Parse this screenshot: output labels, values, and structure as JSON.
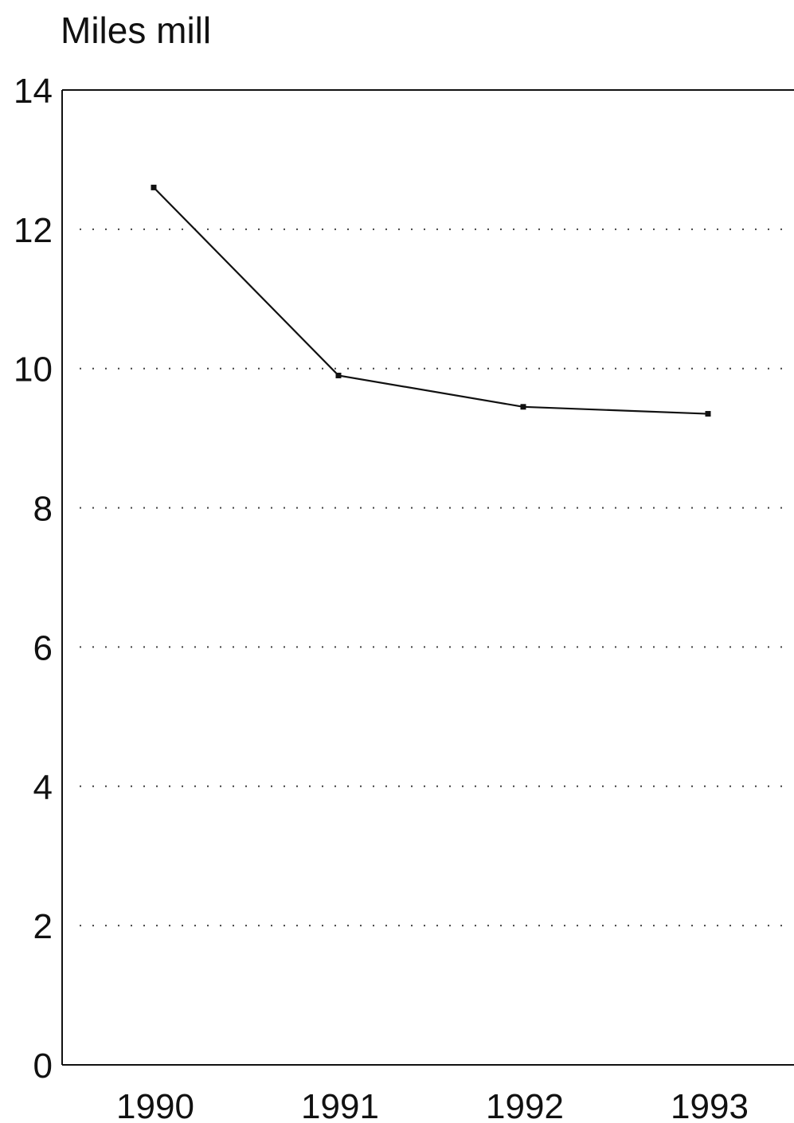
{
  "chart_data": {
    "type": "line",
    "title": "",
    "xlabel": "",
    "ylabel": "Miles mill",
    "categories": [
      "1990",
      "1991",
      "1992",
      "1993"
    ],
    "series": [
      {
        "values": [
          12.6,
          9.9,
          9.45,
          9.35
        ]
      }
    ],
    "ylim": [
      0,
      14
    ],
    "yticks": [
      0,
      2,
      4,
      6,
      8,
      10,
      12,
      14
    ],
    "grid": "horizontal-dotted",
    "legend": "none",
    "colors": {
      "line": "#111111",
      "axis": "#111111",
      "grid": "#444444"
    }
  }
}
